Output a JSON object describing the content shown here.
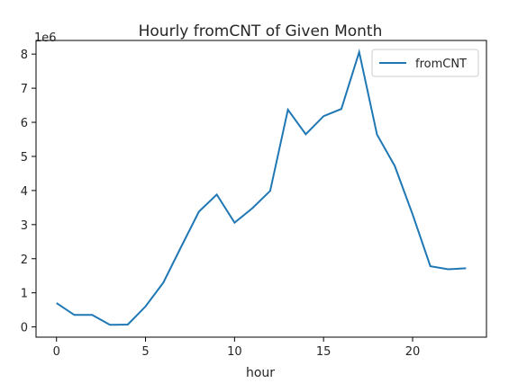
{
  "chart_data": {
    "type": "line",
    "title": "Hourly fromCNT of Given Month",
    "xlabel": "hour",
    "ylabel": "",
    "y_offset_label": "1e6",
    "x": [
      0,
      1,
      2,
      3,
      4,
      5,
      6,
      7,
      8,
      9,
      10,
      11,
      12,
      13,
      14,
      15,
      16,
      17,
      18,
      19,
      20,
      21,
      22,
      23
    ],
    "series": [
      {
        "name": "fromCNT",
        "color": "#1f77b4",
        "values": [
          700000,
          350000,
          350000,
          60000,
          70000,
          600000,
          1300000,
          2350000,
          3380000,
          3880000,
          3060000,
          3480000,
          3990000,
          6370000,
          5650000,
          6180000,
          6390000,
          8060000,
          5640000,
          4720000,
          3300000,
          1780000,
          1690000,
          1720000
        ]
      }
    ],
    "xlim": [
      -1.15,
      24.15
    ],
    "ylim": [
      -300000,
      8400000
    ],
    "xticks": [
      0,
      5,
      10,
      15,
      20
    ],
    "yticks": [
      0,
      1,
      2,
      3,
      4,
      5,
      6,
      7,
      8
    ],
    "legend_position": "top-right",
    "grid": false
  }
}
